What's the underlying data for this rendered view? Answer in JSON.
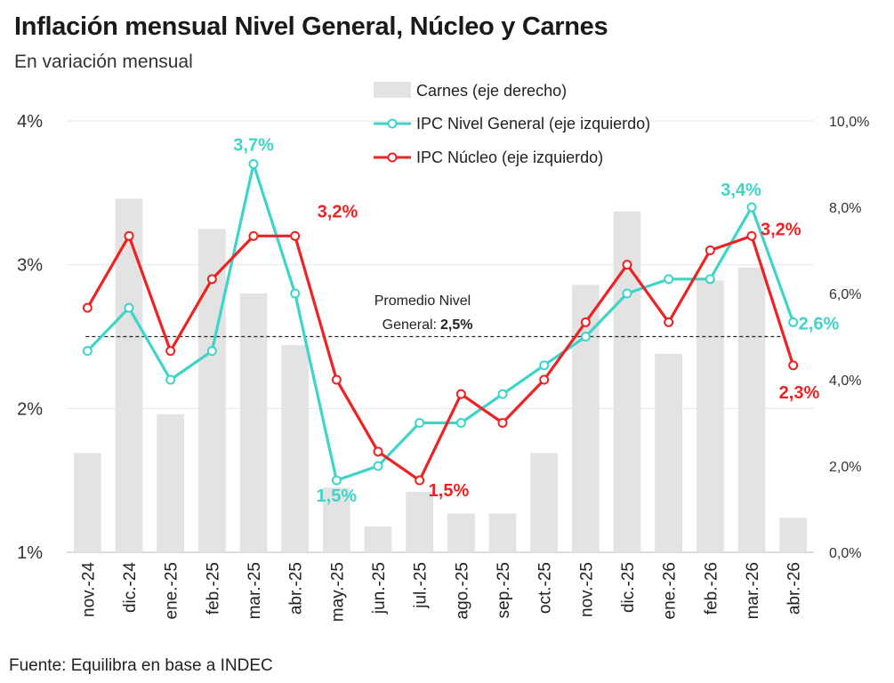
{
  "title": "Inflación mensual Nivel General, Núcleo y Carnes",
  "subtitle": "En variación mensual",
  "source": "Fuente: Equilibra en base a INDEC",
  "colors": {
    "general": "#3fd4c8",
    "nucleo": "#ee2222",
    "carnes": "#e3e3e3",
    "grid": "#e6e6e6"
  },
  "chart_data": {
    "type": "bar+line",
    "categories": [
      "nov.-24",
      "dic.-24",
      "ene.-25",
      "feb.-25",
      "mar.-25",
      "abr.-25",
      "may.-25",
      "jun.-25",
      "jul.-25",
      "ago.-25",
      "sep.-25",
      "oct.-25",
      "nov.-25",
      "dic.-25",
      "ene.-26",
      "feb.-26",
      "mar.-26",
      "abr.-26"
    ],
    "series": [
      {
        "name": "Carnes (eje derecho)",
        "type": "bar",
        "axis": "right",
        "values": [
          2.3,
          8.2,
          3.2,
          7.5,
          6.0,
          4.8,
          1.5,
          0.6,
          1.4,
          0.9,
          0.9,
          2.3,
          6.2,
          7.9,
          4.6,
          6.3,
          6.6,
          0.8
        ]
      },
      {
        "name": "IPC Nivel General (eje izquierdo)",
        "type": "line",
        "axis": "left",
        "values": [
          2.4,
          2.7,
          2.2,
          2.4,
          3.7,
          2.8,
          1.5,
          1.6,
          1.9,
          1.9,
          2.1,
          2.3,
          2.5,
          2.8,
          2.9,
          2.9,
          3.4,
          2.6
        ]
      },
      {
        "name": "IPC Núcleo (eje izquierdo)",
        "type": "line",
        "axis": "left",
        "values": [
          2.7,
          3.2,
          2.4,
          2.9,
          3.2,
          3.2,
          2.2,
          1.7,
          1.5,
          2.1,
          1.9,
          2.2,
          2.6,
          3.0,
          2.6,
          3.1,
          3.2,
          2.3
        ]
      }
    ],
    "left_axis": {
      "ylim": [
        1,
        4
      ],
      "ticks": [
        "1%",
        "2%",
        "3%",
        "4%"
      ],
      "tick_values": [
        1,
        2,
        3,
        4
      ]
    },
    "right_axis": {
      "ylim": [
        0,
        10
      ],
      "ticks": [
        "0,0%",
        "2,0%",
        "4,0%",
        "6,0%",
        "8,0%",
        "10,0%"
      ],
      "tick_values": [
        0,
        2,
        4,
        6,
        8,
        10
      ]
    },
    "average": {
      "value": 2.5,
      "label_line1": "Promedio Nivel",
      "label_line2": "General:",
      "label_value": "2,5%"
    },
    "annotations": [
      {
        "series": 1,
        "index": 4,
        "text": "3,7%"
      },
      {
        "series": 1,
        "index": 6,
        "text": "1,5%"
      },
      {
        "series": 1,
        "index": 16,
        "text": "3,4%"
      },
      {
        "series": 1,
        "index": 17,
        "text": "2,6%"
      },
      {
        "series": 2,
        "index": 5,
        "text": "3,2%"
      },
      {
        "series": 2,
        "index": 8,
        "text": "1,5%"
      },
      {
        "series": 2,
        "index": 16,
        "text": "3,2%"
      },
      {
        "series": 2,
        "index": 17,
        "text": "2,3%"
      }
    ],
    "legend_position": "top-center",
    "grid": true
  }
}
